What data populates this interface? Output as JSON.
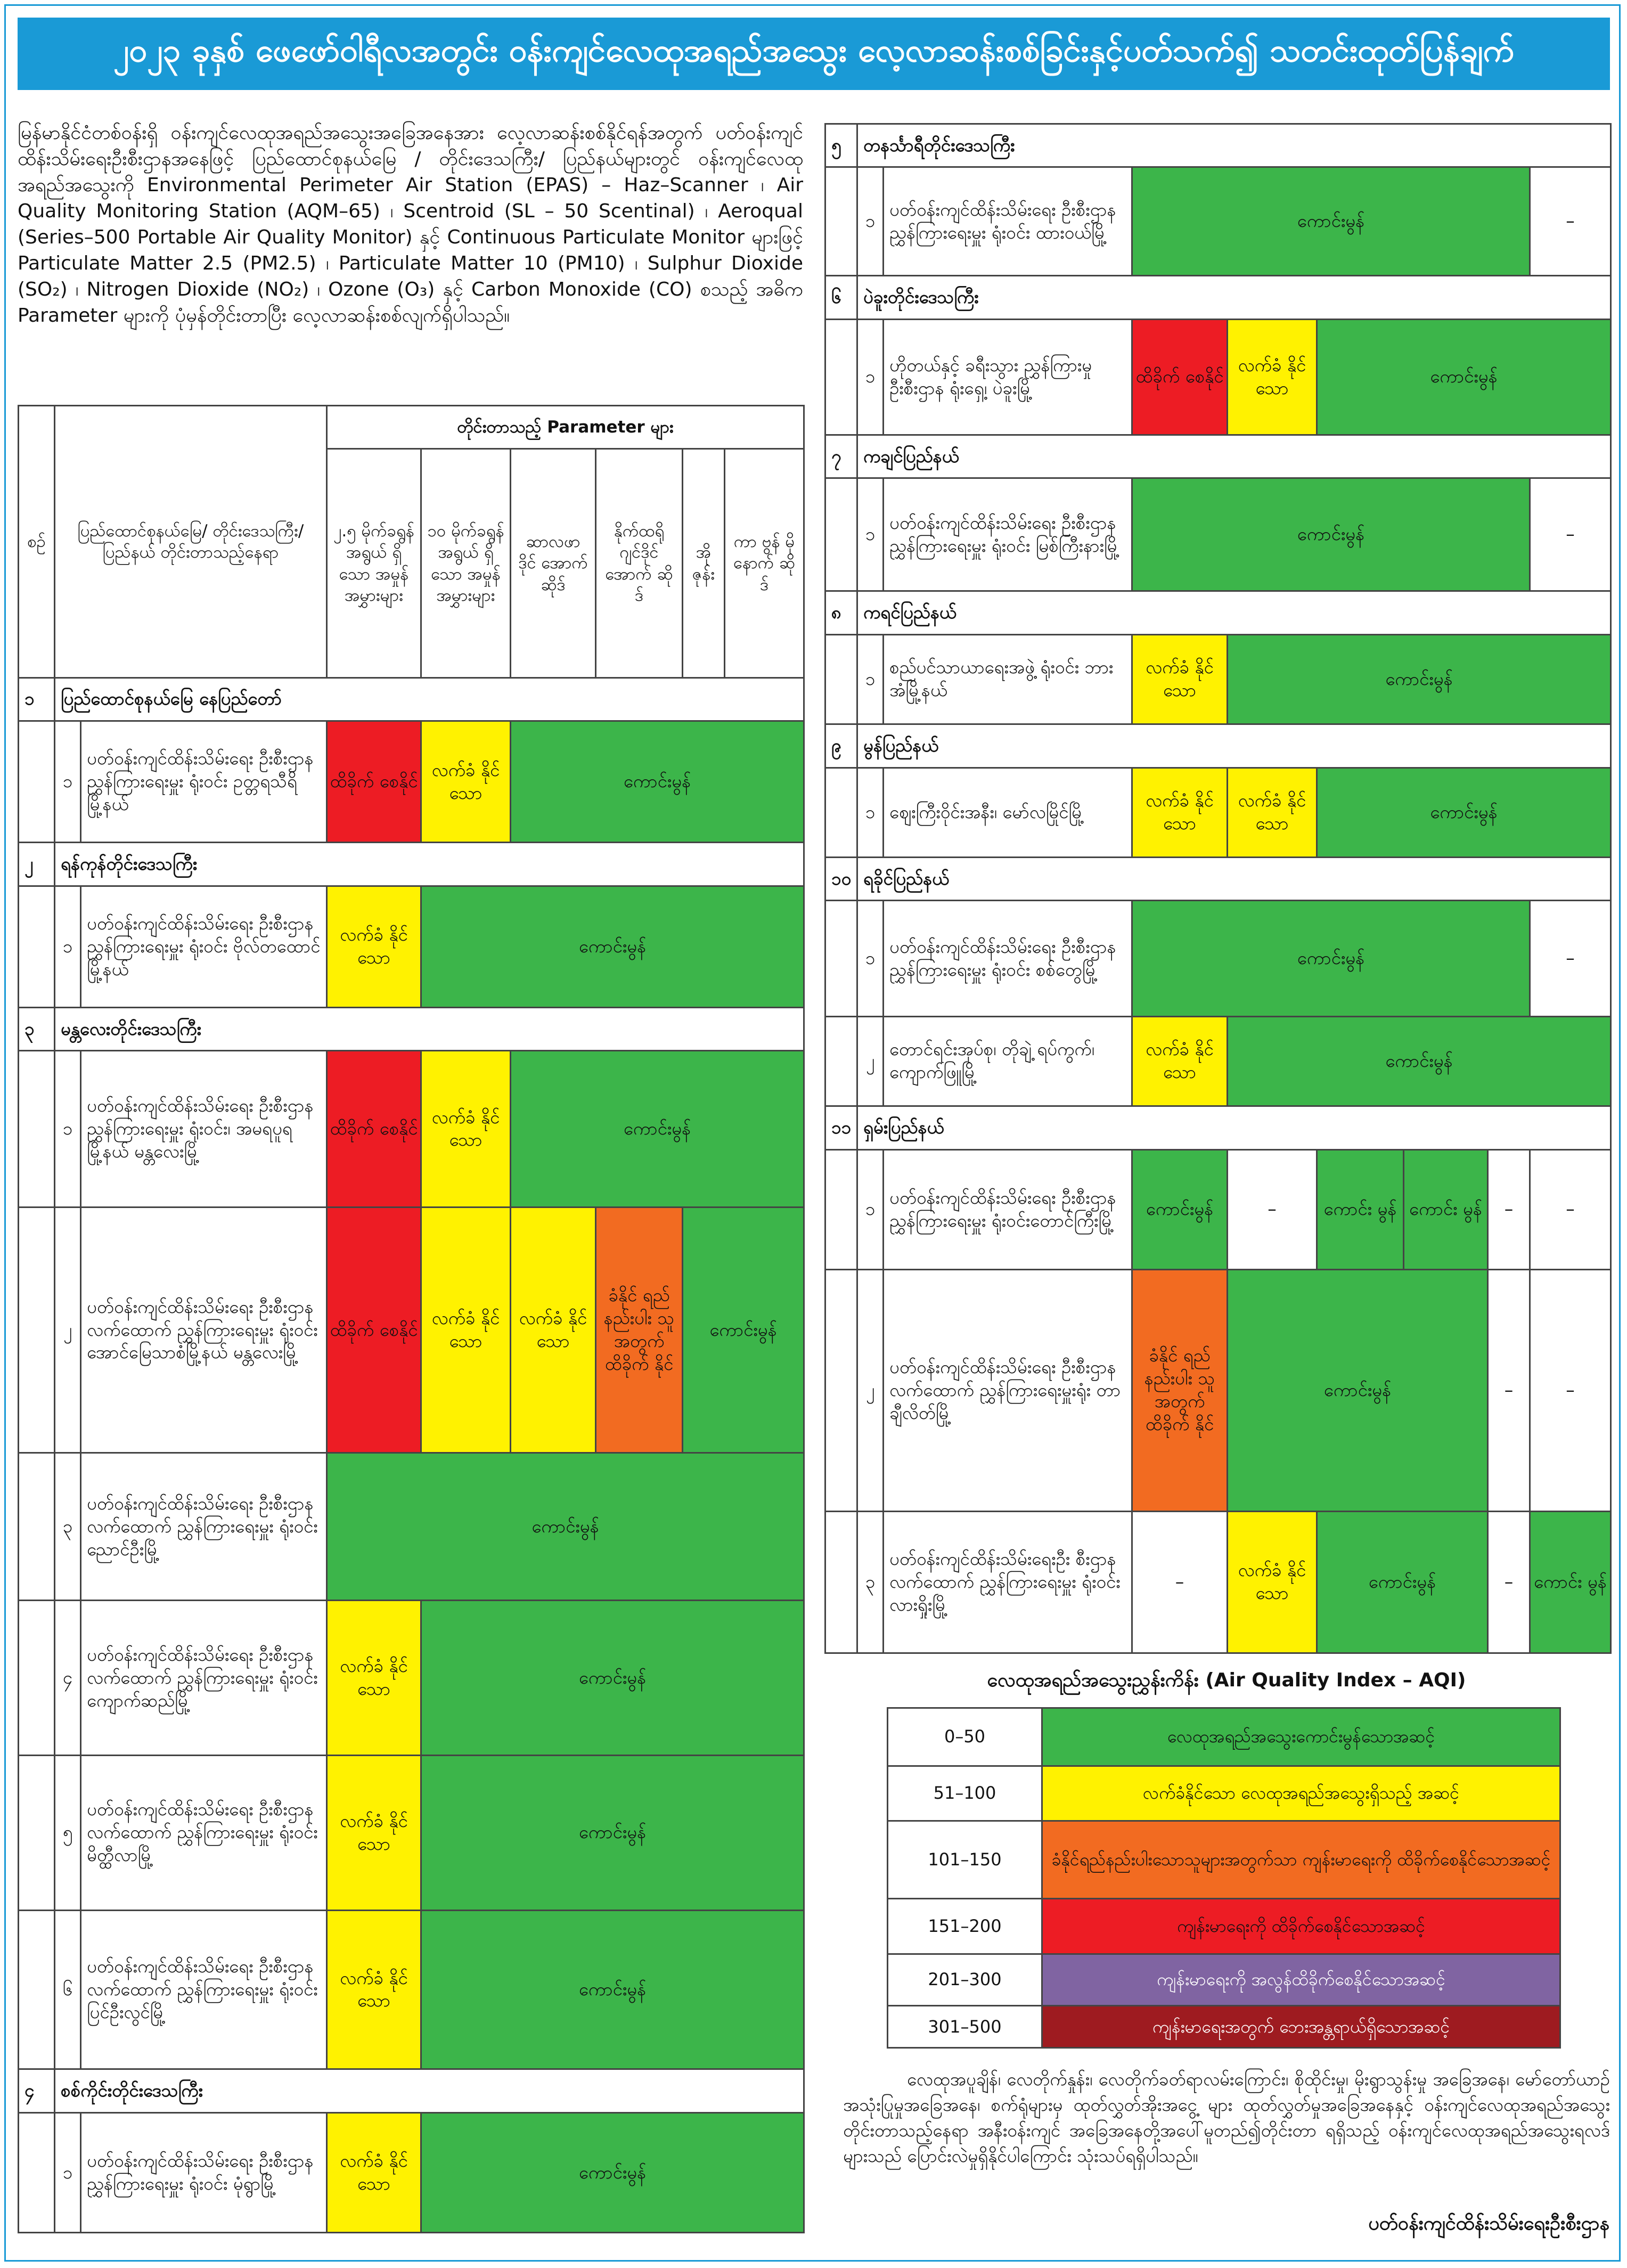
{
  "header": {
    "title": "၂၀၂၃ ခုနှစ် ဖေဖော်ဝါရီလအတွင်း ဝန်းကျင်လေထုအရည်အသွေး လေ့လာဆန်းစစ်ခြင်းနှင့်ပတ်သက်၍ သတင်းထုတ်ပြန်ချက်"
  },
  "intro": "မြန်မာနိုင်ငံတစ်ဝန်းရှိ ဝန်းကျင်လေထုအရည်အသွေးအခြေအနေအား လေ့လာဆန်းစစ်နိုင်ရန်အတွက် ပတ်ဝန်းကျင်ထိန်းသိမ်းရေးဦးစီးဌာနအနေဖြင့် ပြည်ထောင်စုနယ်မြေ / တိုင်းဒေသကြီး/ ပြည်နယ်များတွင် ဝန်းကျင်လေထုအရည်အသွေးကို Environmental Perimeter Air Station (EPAS) – Haz–Scanner ၊ Air Quality Monitoring Station (AQM–65) ၊ Scentroid (SL – 50 Scentinal) ၊ Aeroqual (Series–500 Portable Air Quality Monitor) နှင့် Continuous Particulate Monitor များဖြင့် Particulate Matter 2.5 (PM2.5) ၊ Particulate Matter 10 (PM10) ၊ Sulphur Dioxide (SO₂) ၊ Nitrogen Dioxide (NO₂) ၊ Ozone (O₃) နှင့် Carbon Monoxide (CO) စသည့် အဓိက Parameter များကို ပုံမှန်တိုင်းတာပြီး လေ့လာဆန်းစစ်လျက်ရှိပါသည်။",
  "table": {
    "columns": {
      "no": "စဉ်",
      "place": "ပြည်ထောင်စုနယ်မြေ/ တိုင်းဒေသကြီး/ပြည်နယ် တိုင်းတာသည့်နေရာ",
      "parameters": "တိုင်းတာသည့် Parameter များ",
      "items": [
        "၂.၅ မိုက်ခရွန် အရွယ် ရှိသော အမှုန် အမွှားများ",
        "၁၀ မိုက်ခရွန် အရွယ် ရှိသော အမှုန် အမွှားများ",
        "ဆာလဖာ ဒိုင် အောက် ဆိုဒ်",
        "နိုက်ထရို ဂျင်ဒိုင် အောက် ဆိုဒ်",
        "အို ဇုန်း",
        "ကာ ဗွန် မို နောက် ဆိုဒ်"
      ]
    },
    "groups": [
      {
        "no": "၁",
        "name": "ပြည်ထောင်စုနယ်မြေ နေပြည်တော်",
        "rows": [
          {
            "no": "၁",
            "place": "ပတ်ဝန်းကျင်ထိန်းသိမ်းရေး ဦးစီးဌာန ညွှန်ကြားရေးမှူး ရုံးဝင်း ဥတ္တရသီရိမြို့နယ်",
            "cells": [
              {
                "text": "ထိခိုက် စေနိုင်",
                "span": 1,
                "color": "#ed1c24"
              },
              {
                "text": "လက်ခံ နိုင်သော",
                "span": 1,
                "color": "#fff200"
              },
              {
                "text": "ကောင်းမွန်",
                "span": 4,
                "color": "#3cb54a"
              }
            ]
          }
        ]
      },
      {
        "no": "၂",
        "name": "ရန်ကုန်တိုင်းဒေသကြီး",
        "rows": [
          {
            "no": "၁",
            "place": "ပတ်ဝန်းကျင်ထိန်းသိမ်းရေး ဦးစီးဌာန ညွှန်ကြားရေးမှူး ရုံးဝင်း ဗိုလ်တထောင်မြို့နယ်",
            "cells": [
              {
                "text": "လက်ခံ နိုင်သော",
                "span": 1,
                "color": "#fff200"
              },
              {
                "text": "ကောင်းမွန်",
                "span": 5,
                "color": "#3cb54a"
              }
            ]
          }
        ]
      },
      {
        "no": "၃",
        "name": "မန္တလေးတိုင်းဒေသကြီး",
        "rows": [
          {
            "no": "၁",
            "place": "ပတ်ဝန်းကျင်ထိန်းသိမ်းရေး ဦးစီးဌာန ညွှန်ကြားရေးမှူး ရုံးဝင်း၊ အမရပူရမြို့နယ် မန္တလေးမြို့",
            "cells": [
              {
                "text": "ထိခိုက် စေနိုင်",
                "span": 1,
                "color": "#ed1c24"
              },
              {
                "text": "လက်ခံ နိုင်သော",
                "span": 1,
                "color": "#fff200"
              },
              {
                "text": "ကောင်းမွန်",
                "span": 4,
                "color": "#3cb54a"
              }
            ]
          },
          {
            "no": "၂",
            "place": "ပတ်ဝန်းကျင်ထိန်းသိမ်းရေး ဦးစီးဌာန လက်ထောက် ညွှန်ကြားရေးမှူး ရုံးဝင်း အောင်မြေသာစံမြို့နယ် မန္တလေးမြို့",
            "cells": [
              {
                "text": "ထိခိုက် စေနိုင်",
                "span": 1,
                "color": "#ed1c24"
              },
              {
                "text": "လက်ခံ နိုင်သော",
                "span": 1,
                "color": "#fff200"
              },
              {
                "text": "လက်ခံ နိုင်သော",
                "span": 1,
                "color": "#fff200"
              },
              {
                "text": "ခံနိုင် ရည် နည်းပါး သူ အတွက် ထိခိုက် နိုင်",
                "span": 1,
                "color": "#f26b21"
              },
              {
                "text": "ကောင်းမွန်",
                "span": 2,
                "color": "#3cb54a"
              }
            ]
          },
          {
            "no": "၃",
            "place": "ပတ်ဝန်းကျင်ထိန်းသိမ်းရေး ဦးစီးဌာနလက်ထောက် ညွှန်ကြားရေးမှူး ရုံးဝင်း ညောင်ဦးမြို့",
            "cells": [
              {
                "text": "ကောင်းမွန်",
                "span": 6,
                "color": "#3cb54a"
              }
            ]
          },
          {
            "no": "၄",
            "place": "ပတ်ဝန်းကျင်ထိန်းသိမ်းရေး ဦးစီးဌာန လက်ထောက် ညွှန်ကြားရေးမှူး ရုံးဝင်း ကျောက်ဆည်မြို့",
            "cells": [
              {
                "text": "လက်ခံ နိုင်သော",
                "span": 1,
                "color": "#fff200"
              },
              {
                "text": "ကောင်းမွန်",
                "span": 5,
                "color": "#3cb54a"
              }
            ]
          },
          {
            "no": "၅",
            "place": "ပတ်ဝန်းကျင်ထိန်းသိမ်းရေး ဦးစီးဌာန လက်ထောက် ညွှန်ကြားရေးမှူး ရုံးဝင်း မိတ္ထီလာမြို့",
            "cells": [
              {
                "text": "လက်ခံ နိုင်သော",
                "span": 1,
                "color": "#fff200"
              },
              {
                "text": "ကောင်းမွန်",
                "span": 5,
                "color": "#3cb54a"
              }
            ]
          },
          {
            "no": "၆",
            "place": "ပတ်ဝန်းကျင်ထိန်းသိမ်းရေး ဦးစီးဌာန လက်ထောက် ညွှန်ကြားရေးမှူး ရုံးဝင်း ပြင်ဦးလွင်မြို့",
            "cells": [
              {
                "text": "လက်ခံ နိုင်သော",
                "span": 1,
                "color": "#fff200"
              },
              {
                "text": "ကောင်းမွန်",
                "span": 5,
                "color": "#3cb54a"
              }
            ]
          }
        ]
      },
      {
        "no": "၄",
        "name": "စစ်ကိုင်းတိုင်းဒေသကြီး",
        "rows": [
          {
            "no": "၁",
            "place": "ပတ်ဝန်းကျင်ထိန်းသိမ်းရေး ဦးစီးဌာန ညွှန်ကြားရေးမှူး ရုံးဝင်း မုံရွာမြို့",
            "cells": [
              {
                "text": "လက်ခံ နိုင်သော",
                "span": 1,
                "color": "#fff200"
              },
              {
                "text": "ကောင်းမွန်",
                "span": 5,
                "color": "#3cb54a"
              }
            ]
          }
        ]
      },
      {
        "no": "၅",
        "name": "တနင်္သာရီတိုင်းဒေသကြီး",
        "rows": [
          {
            "no": "၁",
            "place": "ပတ်ဝန်းကျင်ထိန်းသိမ်းရေး ဦးစီးဌာန ညွှန်ကြားရေးမှူး ရုံးဝင်း ထားဝယ်မြို့",
            "cells": [
              {
                "text": "ကောင်းမွန်",
                "span": 5,
                "color": "#3cb54a"
              },
              {
                "text": "–",
                "span": 1,
                "color": "#ffffff"
              }
            ]
          }
        ]
      },
      {
        "no": "၆",
        "name": "ပဲခူးတိုင်းဒေသကြီး",
        "rows": [
          {
            "no": "၁",
            "place": "ဟိုတယ်နှင့် ခရီးသွား ညွှန်ကြားမှုဦးစီးဌာန ရုံးရှေ့၊ ပဲခူးမြို့",
            "cells": [
              {
                "text": "ထိခိုက် စေနိုင်",
                "span": 1,
                "color": "#ed1c24"
              },
              {
                "text": "လက်ခံ နိုင်သော",
                "span": 1,
                "color": "#fff200"
              },
              {
                "text": "ကောင်းမွန်",
                "span": 4,
                "color": "#3cb54a"
              }
            ]
          }
        ]
      },
      {
        "no": "၇",
        "name": "ကချင်ပြည်နယ်",
        "rows": [
          {
            "no": "၁",
            "place": "ပတ်ဝန်းကျင်ထိန်းသိမ်းရေး ဦးစီးဌာန ညွှန်ကြားရေးမှူး ရုံးဝင်း မြစ်ကြီးနားမြို့",
            "cells": [
              {
                "text": "ကောင်းမွန်",
                "span": 5,
                "color": "#3cb54a"
              },
              {
                "text": "–",
                "span": 1,
                "color": "#ffffff"
              }
            ]
          }
        ]
      },
      {
        "no": "၈",
        "name": "ကရင်ပြည်နယ်",
        "rows": [
          {
            "no": "၁",
            "place": "စည်ပင်သာယာရေးအဖွဲ့ ရုံးဝင်း ဘားအံမြို့နယ်",
            "cells": [
              {
                "text": "လက်ခံ နိုင်သော",
                "span": 1,
                "color": "#fff200"
              },
              {
                "text": "ကောင်းမွန်",
                "span": 5,
                "color": "#3cb54a"
              }
            ]
          }
        ]
      },
      {
        "no": "၉",
        "name": "မွန်ပြည်နယ်",
        "rows": [
          {
            "no": "၁",
            "place": "ဈေးကြီးဝိုင်းအနီး၊ မော်လမြိုင်မြို့",
            "cells": [
              {
                "text": "လက်ခံ နိုင်သော",
                "span": 1,
                "color": "#fff200"
              },
              {
                "text": "လက်ခံ နိုင်သော",
                "span": 1,
                "color": "#fff200"
              },
              {
                "text": "ကောင်းမွန်",
                "span": 4,
                "color": "#3cb54a"
              }
            ]
          }
        ]
      },
      {
        "no": "၁၀",
        "name": "ရခိုင်ပြည်နယ်",
        "rows": [
          {
            "no": "၁",
            "place": "ပတ်ဝန်းကျင်ထိန်းသိမ်းရေး ဦးစီးဌာန ညွှန်ကြားရေးမှူး ရုံးဝင်း စစ်တွေမြို့",
            "cells": [
              {
                "text": "ကောင်းမွန်",
                "span": 5,
                "color": "#3cb54a"
              },
              {
                "text": "–",
                "span": 1,
                "color": "#ffffff"
              }
            ]
          },
          {
            "no": "၂",
            "place": "တောင်ရင်းအုပ်စု၊ တိုချဲ့ ရပ်ကွက်၊ကျောက်ဖြူမြို့",
            "cells": [
              {
                "text": "လက်ခံ နိုင်သော",
                "span": 1,
                "color": "#fff200"
              },
              {
                "text": "ကောင်းမွန်",
                "span": 5,
                "color": "#3cb54a"
              }
            ]
          }
        ]
      },
      {
        "no": "၁၁",
        "name": "ရှမ်းပြည်နယ်",
        "rows": [
          {
            "no": "၁",
            "place": "ပတ်ဝန်းကျင်ထိန်းသိမ်းရေး ဦးစီးဌာန ညွှန်ကြားရေးမှူး ရုံးဝင်းတောင်ကြီးမြို့",
            "cells": [
              {
                "text": "ကောင်းမွန်",
                "span": 1,
                "color": "#3cb54a"
              },
              {
                "text": "–",
                "span": 1,
                "color": "#ffffff"
              },
              {
                "text": "ကောင်း မွန်",
                "span": 1,
                "color": "#3cb54a"
              },
              {
                "text": "ကောင်း မွန်",
                "span": 1,
                "color": "#3cb54a"
              },
              {
                "text": "–",
                "span": 1,
                "color": "#ffffff"
              },
              {
                "text": "–",
                "span": 1,
                "color": "#ffffff"
              }
            ]
          },
          {
            "no": "၂",
            "place": "ပတ်ဝန်းကျင်ထိန်းသိမ်းရေး ဦးစီးဌာန လက်ထောက် ညွှန်ကြားရေးမှူးရုံး တာချီလိတ်မြို့",
            "cells": [
              {
                "text": "ခံနိုင် ရည် နည်းပါး သူ အတွက် ထိခိုက် နိုင်",
                "span": 1,
                "color": "#f26b21"
              },
              {
                "text": "ကောင်းမွန်",
                "span": 3,
                "color": "#3cb54a"
              },
              {
                "text": "–",
                "span": 1,
                "color": "#ffffff"
              },
              {
                "text": "–",
                "span": 1,
                "color": "#ffffff"
              }
            ]
          },
          {
            "no": "၃",
            "place": "ပတ်ဝန်းကျင်ထိန်းသိမ်းရေးဦး စီးဌာန လက်ထောက် ညွှန်ကြားရေးမှူး ရုံးဝင်း လားရှိုးမြို့",
            "cells": [
              {
                "text": "–",
                "span": 1,
                "color": "#ffffff"
              },
              {
                "text": "လက်ခံ နိုင် သော",
                "span": 1,
                "color": "#fff200"
              },
              {
                "text": "ကောင်းမွန်",
                "span": 2,
                "color": "#3cb54a"
              },
              {
                "text": "–",
                "span": 1,
                "color": "#ffffff"
              },
              {
                "text": "ကောင်း မွန်",
                "span": 1,
                "color": "#3cb54a"
              }
            ]
          }
        ]
      }
    ]
  },
  "aqi": {
    "title": "လေထုအရည်အသွေးညွှန်းကိန်း (Air Quality Index – AQI)",
    "rows": [
      {
        "range": "0–50",
        "text": "လေထုအရည်အသွေးကောင်းမွန်သောအဆင့်",
        "color": "#3cb54a"
      },
      {
        "range": "51–100",
        "text": "လက်ခံနိုင်သော လေထုအရည်အသွေးရှိသည့် အဆင့်",
        "color": "#fff200"
      },
      {
        "range": "101–150",
        "text": "ခံနိုင်ရည်နည်းပါးသောသူများအတွက်သာ ကျန်းမာရေးကို ထိခိုက်စေနိုင်သောအဆင့်",
        "color": "#f26b21"
      },
      {
        "range": "151–200",
        "text": "ကျန်းမာရေးကို ထိခိုက်စေနိုင်သောအဆင့်",
        "color": "#ed1c24"
      },
      {
        "range": "201–300",
        "text": "ကျန်းမာရေးကို အလွန်ထိခိုက်စေနိုင်သောအဆင့်",
        "color": "#8064a2"
      },
      {
        "range": "301–500",
        "text": "ကျန်းမာရေးအတွက် ဘေးအန္တရာယ်ရှိသောအဆင့်",
        "color": "#9e1b20"
      }
    ]
  },
  "note": "လေထုအပူချိန်၊ လေတိုက်နှုန်း၊ လေတိုက်ခတ်ရာလမ်းကြောင်း၊ စိုထိုင်းမှု၊ မိုးရွာသွန်းမှု အခြေအနေ၊ မော်တော်ယာဉ်အသုံးပြုမှုအခြေအနေ၊ စက်ရုံများမှ ထုတ်လွှတ်အိုးအငွေ့ များ ထုတ်လွှတ်မှုအခြေအနေနှင့် ဝန်းကျင်လေထုအရည်အသွေးတိုင်းတာသည့်နေရာ အနီးဝန်းကျင် အခြေအနေတို့အပေါ်မူတည်၍တိုင်းတာ ရရှိသည့် ဝန်းကျင်လေထုအရည်အသွေးရလဒ်များသည် ပြောင်းလဲမှုရှိနိုင်ပါကြောင်း သုံးသပ်ရရှိပါသည်။",
  "signature": "ပတ်ဝန်းကျင်ထိန်းသိမ်းရေးဦးစီးဌာန"
}
